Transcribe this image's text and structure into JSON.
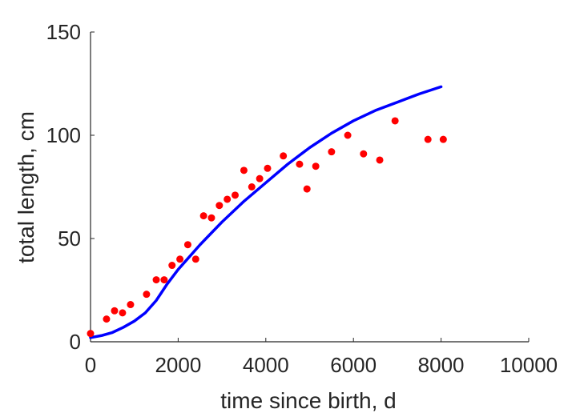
{
  "chart_data": {
    "type": "scatter",
    "title": "",
    "xlabel": "time since birth, d",
    "ylabel": "total length, cm",
    "xlim": [
      0,
      10000
    ],
    "ylim": [
      0,
      150
    ],
    "xticks": [
      0,
      2000,
      4000,
      6000,
      8000,
      10000
    ],
    "yticks": [
      0,
      50,
      100,
      150
    ],
    "grid": false,
    "legend": "none",
    "colors": {
      "points": "#ff0000",
      "curve": "#0000ff",
      "axes": "#262626"
    },
    "series": [
      {
        "kind": "scatter",
        "x": [
          0,
          365,
          548,
          730,
          913,
          1278,
          1500,
          1680,
          1860,
          2040,
          2220,
          2400,
          2580,
          2760,
          2940,
          3120,
          3300,
          3500,
          3680,
          3860,
          4040,
          4400,
          4770,
          4940,
          5140,
          5500,
          5870,
          6230,
          6600,
          6950,
          7700,
          8050
        ],
        "y": [
          4,
          11,
          15,
          14,
          18,
          23,
          30,
          30,
          37,
          40,
          47,
          40,
          61,
          60,
          66,
          69,
          71,
          83,
          75,
          79,
          84,
          90,
          86,
          74,
          85,
          92,
          100,
          91,
          88,
          107,
          98,
          98
        ]
      },
      {
        "kind": "line",
        "x": [
          0,
          250,
          500,
          750,
          1000,
          1250,
          1500,
          1750,
          2000,
          2500,
          3000,
          3500,
          4000,
          4500,
          5000,
          5500,
          6000,
          6500,
          7000,
          7500,
          8000
        ],
        "y": [
          2,
          3,
          4.5,
          7,
          10,
          14,
          20,
          28,
          35,
          47,
          58,
          68,
          77,
          86,
          94,
          101,
          107,
          112,
          116,
          120,
          123.5
        ]
      }
    ]
  }
}
